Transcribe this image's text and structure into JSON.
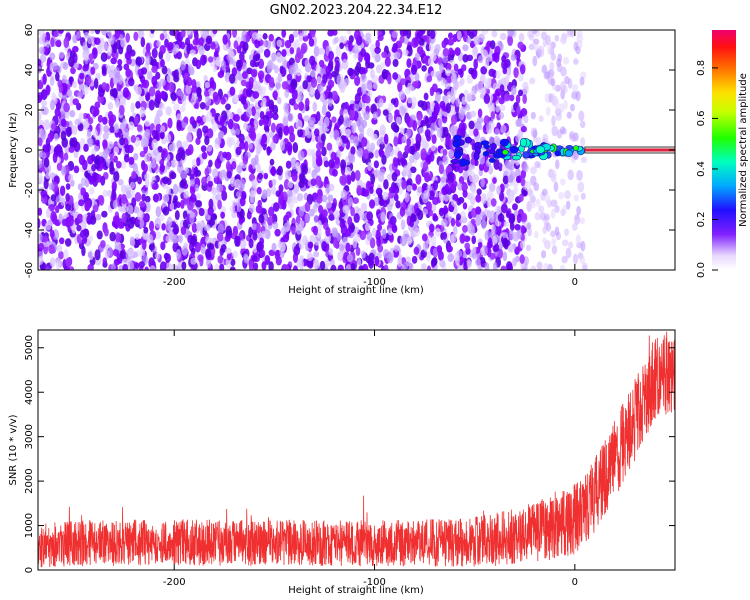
{
  "figure": {
    "title": "GN02.2023.204.22.34.E12"
  },
  "chart_data": [
    {
      "type": "heatmap",
      "title": "GN02.2023.204.22.34.E12",
      "xlabel": "Height of straight line (km)",
      "ylabel": "Frequency (Hz)",
      "xlim": [
        -268,
        50
      ],
      "ylim": [
        -60,
        60
      ],
      "xticks": [
        -200,
        -100,
        0
      ],
      "yticks": [
        -60,
        -40,
        -20,
        0,
        20,
        40,
        60
      ],
      "colorbar": {
        "label": "Normalized spectral amplitude",
        "range": [
          0,
          0.95
        ],
        "ticks": [
          "0.0",
          "0.2",
          "0.4",
          "0.6",
          "0.8"
        ],
        "colormap": "hsv-rainbow-on-white"
      },
      "colors": {
        "noise": "#7a00ff",
        "line": "#e0203c",
        "band": "#404040"
      },
      "features": {
        "noise_region_x": [
          -268,
          -25
        ],
        "fading_region_x": [
          -25,
          5
        ],
        "clean_region_x": [
          5,
          50
        ],
        "signal_frequency_hz": 0,
        "signal_onset_x": -60
      },
      "grid": false
    },
    {
      "type": "line",
      "xlabel": "Height of straight line (km)",
      "ylabel": "SNR (10 * v/v)",
      "xlim": [
        -268,
        50
      ],
      "ylim": [
        0,
        5400
      ],
      "xticks": [
        -200,
        -100,
        0
      ],
      "yticks": [
        0,
        1000,
        2000,
        3000,
        4000,
        5000
      ],
      "color": "#f03030",
      "series": [
        {
          "x": [
            -268,
            -250,
            -200,
            -150,
            -100,
            -60,
            -40,
            -20,
            -10,
            0,
            10,
            20,
            30,
            40,
            50
          ],
          "y": [
            580,
            600,
            620,
            610,
            600,
            610,
            680,
            850,
            1000,
            1150,
            1700,
            2500,
            3400,
            4300,
            4500
          ]
        }
      ],
      "spread": [
        520,
        520,
        520,
        520,
        520,
        540,
        600,
        680,
        760,
        800,
        850,
        900,
        950,
        950,
        950
      ],
      "grid": false
    }
  ]
}
